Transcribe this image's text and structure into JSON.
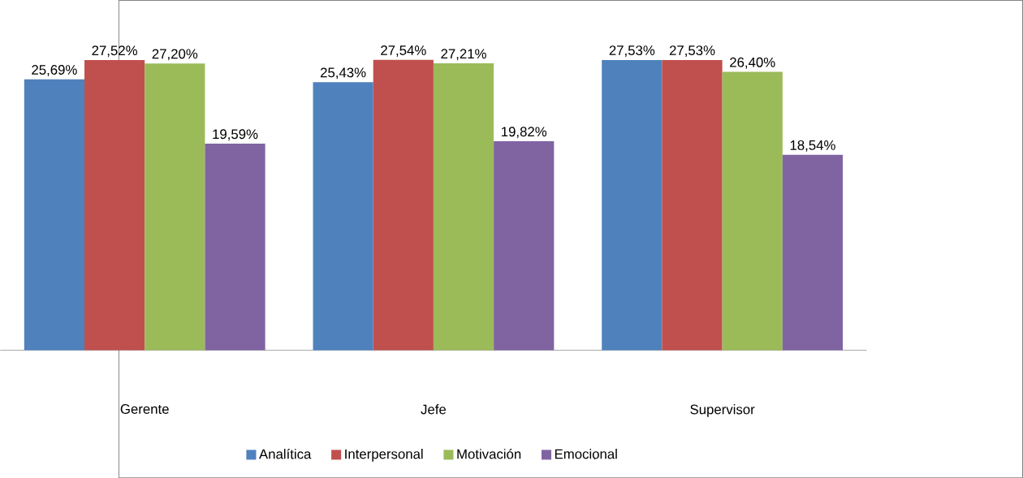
{
  "chart_data": {
    "type": "bar",
    "categories": [
      "Gerente",
      "Jefe",
      "Supervisor"
    ],
    "series": [
      {
        "name": "Analítica",
        "color": "#4f81bd",
        "values": [
          25.69,
          25.43,
          27.53
        ],
        "value_labels": [
          "25,69%",
          "25,43%",
          "27,53%"
        ]
      },
      {
        "name": "Interpersonal",
        "color": "#c0504d",
        "values": [
          27.52,
          27.54,
          27.53
        ],
        "value_labels": [
          "27,52%",
          "27,54%",
          "27,53%"
        ]
      },
      {
        "name": "Motivación",
        "color": "#9bbb59",
        "values": [
          27.2,
          27.21,
          26.4
        ],
        "value_labels": [
          "27,20%",
          "27,21%",
          "26,40%"
        ]
      },
      {
        "name": "Emocional",
        "color": "#8064a2",
        "values": [
          19.59,
          19.82,
          18.54
        ],
        "value_labels": [
          "19,59%",
          "19,82%",
          "18,54%"
        ]
      }
    ],
    "legend": "bottom"
  }
}
